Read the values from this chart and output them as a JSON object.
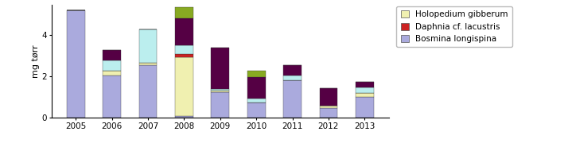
{
  "years": [
    "2005",
    "2006",
    "2007",
    "2008",
    "2009",
    "2010",
    "2011",
    "2012",
    "2013"
  ],
  "colors": {
    "bosmina": "#aaaadd",
    "holopedium": "#f0f0b0",
    "daphnia": "#cc2222",
    "cyan": "#bbeeee",
    "purple": "#550044",
    "green": "#88aa22"
  },
  "bosmina": [
    5.2,
    2.05,
    2.55,
    0.08,
    1.25,
    0.75,
    1.8,
    0.45,
    1.0
  ],
  "holopedium": [
    0.0,
    0.22,
    0.12,
    2.85,
    0.05,
    0.0,
    0.0,
    0.12,
    0.2
  ],
  "daphnia": [
    0.0,
    0.0,
    0.0,
    0.15,
    0.0,
    0.0,
    0.0,
    0.0,
    0.0
  ],
  "cyan": [
    0.0,
    0.5,
    1.6,
    0.45,
    0.08,
    0.18,
    0.25,
    0.0,
    0.28
  ],
  "purple": [
    0.0,
    0.52,
    0.0,
    1.28,
    2.0,
    1.05,
    0.5,
    0.85,
    0.25
  ],
  "green": [
    0.0,
    0.0,
    0.0,
    0.54,
    0.0,
    0.28,
    0.0,
    0.0,
    0.0
  ],
  "ylabel": "mg tørr",
  "ylim": [
    0,
    5.5
  ],
  "yticks": [
    0,
    2,
    4
  ],
  "bar_width": 0.5,
  "legend_entries": [
    {
      "label": "Holopedium gibberum",
      "color": "#f0f0b0"
    },
    {
      "label": "Daphnia cf. lacustris",
      "color": "#cc2222"
    },
    {
      "label": "Bosmina longispina",
      "color": "#aaaadd"
    }
  ]
}
